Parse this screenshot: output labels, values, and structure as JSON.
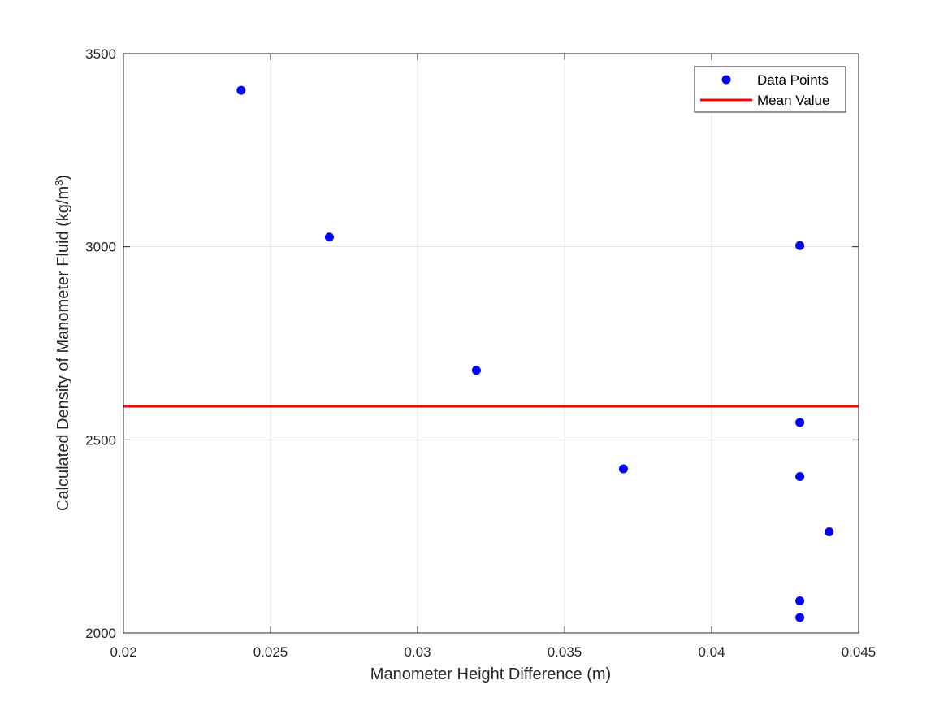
{
  "chart_data": {
    "type": "scatter",
    "title": "",
    "xlabel": "Manometer Height Difference (m)",
    "ylabel_parts": {
      "before": "Calculated Density of Manometer Fluid (kg/m",
      "superscript": "3",
      "after": ")"
    },
    "xlim": [
      0.02,
      0.045
    ],
    "ylim": [
      2000,
      3500
    ],
    "x_ticks": [
      0.02,
      0.025,
      0.03,
      0.035,
      0.04,
      0.045
    ],
    "x_tick_labels": [
      "0.02",
      "0.025",
      "0.03",
      "0.035",
      "0.04",
      "0.045"
    ],
    "y_ticks": [
      2000,
      2500,
      3000,
      3500
    ],
    "y_tick_labels": [
      "2000",
      "2500",
      "3000",
      "3500"
    ],
    "grid": true,
    "legend_position": "top-right",
    "series": [
      {
        "name": "Data Points",
        "kind": "scatter",
        "color": "#0000ff",
        "x": [
          0.024,
          0.027,
          0.032,
          0.037,
          0.043,
          0.043,
          0.043,
          0.044,
          0.043,
          0.043
        ],
        "y": [
          3405,
          3025,
          2680,
          2425,
          3003,
          2545,
          2405,
          2262,
          2083,
          2040
        ]
      },
      {
        "name": "Mean Value",
        "kind": "hline",
        "color": "#ff0000",
        "y": 2587
      }
    ]
  }
}
